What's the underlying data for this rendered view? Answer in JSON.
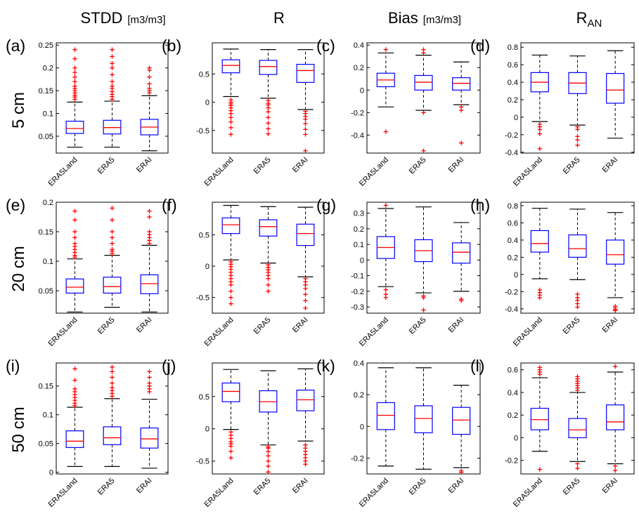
{
  "columns": [
    {
      "title": "STDD",
      "unit": "[m3/m3]"
    },
    {
      "title": "R",
      "unit": ""
    },
    {
      "title": "Bias",
      "unit": "[m3/m3]"
    },
    {
      "title": "R",
      "subscript": "AN",
      "unit": ""
    }
  ],
  "rows": [
    "5 cm",
    "20 cm",
    "50 cm"
  ],
  "colors": {
    "box": "#0000ff",
    "median": "#ff0000",
    "outlier": "#ff0000",
    "whisker": "#000000"
  },
  "chart_data": [
    {
      "label": "(a)",
      "type": "boxplot",
      "categories": [
        "ERA5Land",
        "ERA5",
        "ERAI"
      ],
      "ylim": [
        0.013,
        0.255
      ],
      "yticks": [
        0.05,
        0.1,
        0.15,
        0.2,
        0.25
      ],
      "yticklabels": [
        "0.05",
        "0.1",
        "0.15",
        "0.2",
        "0.25"
      ],
      "boxes": [
        {
          "q1": 0.056,
          "median": 0.067,
          "q3": 0.083,
          "whisker_low": 0.026,
          "whisker_high": 0.125,
          "outliers": [
            0.131,
            0.136,
            0.14,
            0.145,
            0.15,
            0.155,
            0.16,
            0.17,
            0.18,
            0.19,
            0.2,
            0.22,
            0.24
          ]
        },
        {
          "q1": 0.055,
          "median": 0.069,
          "q3": 0.085,
          "whisker_low": 0.026,
          "whisker_high": 0.127,
          "outliers": [
            0.131,
            0.137,
            0.142,
            0.148,
            0.155,
            0.16,
            0.17,
            0.185,
            0.2,
            0.21,
            0.225,
            0.24
          ]
        },
        {
          "q1": 0.053,
          "median": 0.07,
          "q3": 0.087,
          "whisker_low": 0.018,
          "whisker_high": 0.139,
          "outliers": [
            0.145,
            0.15,
            0.155,
            0.165,
            0.18,
            0.195,
            0.2
          ]
        }
      ]
    },
    {
      "label": "(b)",
      "type": "boxplot",
      "categories": [
        "ERA5Land",
        "ERA5",
        "ERAI"
      ],
      "ylim": [
        -0.9,
        1.05
      ],
      "yticks": [
        -0.5,
        0,
        0.5
      ],
      "yticklabels": [
        "-0.5",
        "0",
        "0.5"
      ],
      "boxes": [
        {
          "q1": 0.52,
          "median": 0.65,
          "q3": 0.75,
          "whisker_low": 0.1,
          "whisker_high": 0.94,
          "outliers": [
            0.04,
            0.0,
            -0.03,
            -0.06,
            -0.1,
            -0.15,
            -0.2,
            -0.27,
            -0.35,
            -0.45,
            -0.57
          ]
        },
        {
          "q1": 0.49,
          "median": 0.63,
          "q3": 0.74,
          "whisker_low": 0.07,
          "whisker_high": 0.93,
          "outliers": [
            0.03,
            -0.02,
            -0.05,
            -0.1,
            -0.17,
            -0.27,
            -0.37,
            -0.47,
            -0.56
          ]
        },
        {
          "q1": 0.35,
          "median": 0.56,
          "q3": 0.67,
          "whisker_low": -0.13,
          "whisker_high": 0.93,
          "outliers": [
            -0.16,
            -0.2,
            -0.25,
            -0.3,
            -0.38,
            -0.48,
            -0.57,
            -0.86
          ]
        }
      ]
    },
    {
      "label": "(c)",
      "type": "boxplot",
      "categories": [
        "ERA5Land",
        "ERA5",
        "ERAI"
      ],
      "ylim": [
        -0.56,
        0.42
      ],
      "yticks": [
        -0.4,
        -0.2,
        0,
        0.2,
        0.4
      ],
      "yticklabels": [
        "-0.4",
        "-0.2",
        "0",
        "0.2",
        "0.4"
      ],
      "boxes": [
        {
          "q1": 0.03,
          "median": 0.09,
          "q3": 0.15,
          "whisker_low": -0.15,
          "whisker_high": 0.33,
          "outliers": [
            0.36,
            -0.37
          ]
        },
        {
          "q1": 0.0,
          "median": 0.07,
          "q3": 0.13,
          "whisker_low": -0.18,
          "whisker_high": 0.31,
          "outliers": [
            0.33,
            0.36,
            -0.2,
            -0.54
          ]
        },
        {
          "q1": 0.0,
          "median": 0.06,
          "q3": 0.11,
          "whisker_low": -0.13,
          "whisker_high": 0.25,
          "outliers": [
            -0.15,
            -0.18,
            -0.47
          ]
        }
      ]
    },
    {
      "label": "(d)",
      "type": "boxplot",
      "categories": [
        "ERA5Land",
        "ERA5",
        "ERAI"
      ],
      "ylim": [
        -0.41,
        0.85
      ],
      "yticks": [
        -0.4,
        -0.2,
        0,
        0.2,
        0.4,
        0.6,
        0.8
      ],
      "yticklabels": [
        "-0.4",
        "-0.2",
        "0",
        "0.2",
        "0.4",
        "0.6",
        "0.8"
      ],
      "boxes": [
        {
          "q1": 0.29,
          "median": 0.4,
          "q3": 0.51,
          "whisker_low": -0.05,
          "whisker_high": 0.71,
          "outliers": [
            -0.08,
            -0.11,
            -0.14,
            -0.19,
            -0.36
          ]
        },
        {
          "q1": 0.27,
          "median": 0.39,
          "q3": 0.51,
          "whisker_low": -0.09,
          "whisker_high": 0.7,
          "outliers": [
            -0.11,
            -0.14,
            -0.22,
            -0.26,
            -0.32
          ]
        },
        {
          "q1": 0.16,
          "median": 0.31,
          "q3": 0.5,
          "whisker_low": -0.24,
          "whisker_high": 0.76,
          "outliers": []
        }
      ]
    },
    {
      "label": "(e)",
      "type": "boxplot",
      "categories": [
        "ERA5Land",
        "ERA5",
        "ERAI"
      ],
      "ylim": [
        0.012,
        0.2
      ],
      "yticks": [
        0.05,
        0.1,
        0.15,
        0.2
      ],
      "yticklabels": [
        "0.05",
        "0.1",
        "0.15",
        "0.2"
      ],
      "boxes": [
        {
          "q1": 0.046,
          "median": 0.056,
          "q3": 0.07,
          "whisker_low": 0.014,
          "whisker_high": 0.104,
          "outliers": [
            0.107,
            0.11,
            0.115,
            0.12,
            0.125,
            0.13,
            0.14,
            0.15,
            0.17,
            0.185
          ]
        },
        {
          "q1": 0.046,
          "median": 0.057,
          "q3": 0.073,
          "whisker_low": 0.022,
          "whisker_high": 0.11,
          "outliers": [
            0.113,
            0.117,
            0.12,
            0.13,
            0.14,
            0.15,
            0.17,
            0.19
          ]
        },
        {
          "q1": 0.045,
          "median": 0.062,
          "q3": 0.077,
          "whisker_low": 0.014,
          "whisker_high": 0.127,
          "outliers": [
            0.13,
            0.135,
            0.14,
            0.145,
            0.15,
            0.175,
            0.185
          ]
        }
      ]
    },
    {
      "label": "(f)",
      "type": "boxplot",
      "categories": [
        "ERA5Land",
        "ERA5",
        "ERAI"
      ],
      "ylim": [
        -0.75,
        1.02
      ],
      "yticks": [
        -0.5,
        0,
        0.5
      ],
      "yticklabels": [
        "-0.5",
        "0",
        "0.5"
      ],
      "boxes": [
        {
          "q1": 0.52,
          "median": 0.66,
          "q3": 0.77,
          "whisker_low": 0.1,
          "whisker_high": 0.97,
          "outliers": [
            0.07,
            0.03,
            -0.01,
            -0.05,
            -0.1,
            -0.15,
            -0.2,
            -0.25,
            -0.3,
            -0.4,
            -0.5,
            -0.6
          ]
        },
        {
          "q1": 0.48,
          "median": 0.63,
          "q3": 0.74,
          "whisker_low": 0.05,
          "whisker_high": 0.95,
          "outliers": [
            0.02,
            -0.02,
            -0.06,
            -0.1,
            -0.15,
            -0.2,
            -0.3,
            -0.4
          ]
        },
        {
          "q1": 0.33,
          "median": 0.52,
          "q3": 0.67,
          "whisker_low": -0.17,
          "whisker_high": 0.94,
          "outliers": [
            -0.2,
            -0.25,
            -0.3,
            -0.36,
            -0.45,
            -0.55,
            -0.67
          ]
        }
      ]
    },
    {
      "label": "(g)",
      "type": "boxplot",
      "categories": [
        "ERA5Land",
        "ERA5",
        "ERAI"
      ],
      "ylim": [
        -0.34,
        0.37
      ],
      "yticks": [
        -0.3,
        -0.2,
        -0.1,
        0,
        0.1,
        0.2,
        0.3
      ],
      "yticklabels": [
        "-0.3",
        "-0.2",
        "-0.1",
        "0",
        "0.1",
        "0.2",
        "0.3"
      ],
      "boxes": [
        {
          "q1": 0.01,
          "median": 0.08,
          "q3": 0.15,
          "whisker_low": -0.17,
          "whisker_high": 0.33,
          "outliers": [
            0.35,
            -0.19,
            -0.22,
            -0.24
          ]
        },
        {
          "q1": -0.01,
          "median": 0.06,
          "q3": 0.13,
          "whisker_low": -0.21,
          "whisker_high": 0.34,
          "outliers": [
            -0.23,
            -0.24,
            -0.32
          ]
        },
        {
          "q1": -0.02,
          "median": 0.05,
          "q3": 0.11,
          "whisker_low": -0.2,
          "whisker_high": 0.24,
          "outliers": [
            -0.25,
            -0.26
          ]
        }
      ]
    },
    {
      "label": "(h)",
      "type": "boxplot",
      "categories": [
        "ERA5Land",
        "ERA5",
        "ERAI"
      ],
      "ylim": [
        -0.45,
        0.84
      ],
      "yticks": [
        -0.4,
        -0.2,
        0,
        0.2,
        0.4,
        0.6,
        0.8
      ],
      "yticklabels": [
        "-0.4",
        "-0.2",
        "0",
        "0.2",
        "0.4",
        "0.6",
        "0.8"
      ],
      "boxes": [
        {
          "q1": 0.26,
          "median": 0.36,
          "q3": 0.51,
          "whisker_low": -0.05,
          "whisker_high": 0.77,
          "outliers": [
            -0.18,
            -0.21,
            -0.24,
            -0.27
          ]
        },
        {
          "q1": 0.2,
          "median": 0.3,
          "q3": 0.46,
          "whisker_low": -0.06,
          "whisker_high": 0.76,
          "outliers": [
            -0.23,
            -0.27,
            -0.3,
            -0.34,
            -0.38
          ]
        },
        {
          "q1": 0.12,
          "median": 0.23,
          "q3": 0.4,
          "whisker_low": -0.27,
          "whisker_high": 0.72,
          "outliers": [
            -0.37,
            -0.39,
            -0.41,
            -0.42
          ]
        }
      ]
    },
    {
      "label": "(i)",
      "type": "boxplot",
      "categories": [
        "ERA5Land",
        "ERA5",
        "ERAI"
      ],
      "ylim": [
        -0.003,
        0.19
      ],
      "yticks": [
        0,
        0.05,
        0.1,
        0.15
      ],
      "yticklabels": [
        "0",
        "0.05",
        "0.1",
        "0.15"
      ],
      "boxes": [
        {
          "q1": 0.043,
          "median": 0.054,
          "q3": 0.072,
          "whisker_low": 0.01,
          "whisker_high": 0.113,
          "outliers": [
            0.116,
            0.12,
            0.125,
            0.13,
            0.135,
            0.14,
            0.145,
            0.16,
            0.18
          ]
        },
        {
          "q1": 0.048,
          "median": 0.06,
          "q3": 0.079,
          "whisker_low": 0.01,
          "whisker_high": 0.128,
          "outliers": [
            0.132,
            0.137,
            0.142,
            0.147,
            0.155,
            0.165,
            0.175,
            0.183
          ]
        },
        {
          "q1": 0.042,
          "median": 0.058,
          "q3": 0.077,
          "whisker_low": 0.007,
          "whisker_high": 0.127,
          "outliers": [
            0.14,
            0.145,
            0.15,
            0.155,
            0.165,
            0.175
          ]
        }
      ]
    },
    {
      "label": "(j)",
      "type": "boxplot",
      "categories": [
        "ERA5Land",
        "ERA5",
        "ERAI"
      ],
      "ylim": [
        -0.7,
        1.02
      ],
      "yticks": [
        -0.5,
        0,
        0.5
      ],
      "yticklabels": [
        "-0.5",
        "0",
        "0.5"
      ],
      "boxes": [
        {
          "q1": 0.42,
          "median": 0.58,
          "q3": 0.71,
          "whisker_low": -0.01,
          "whisker_high": 0.92,
          "outliers": [
            -0.05,
            -0.1,
            -0.15,
            -0.2,
            -0.23,
            -0.27,
            -0.35,
            -0.45
          ]
        },
        {
          "q1": 0.26,
          "median": 0.42,
          "q3": 0.59,
          "whisker_low": -0.25,
          "whisker_high": 0.9,
          "outliers": [
            -0.28,
            -0.3,
            -0.35,
            -0.42,
            -0.5,
            -0.58,
            -0.67
          ]
        },
        {
          "q1": 0.28,
          "median": 0.45,
          "q3": 0.6,
          "whisker_low": -0.19,
          "whisker_high": 0.93,
          "outliers": [
            -0.25,
            -0.3,
            -0.35,
            -0.4,
            -0.45,
            -0.5,
            -0.55
          ]
        }
      ]
    },
    {
      "label": "(k)",
      "type": "boxplot",
      "categories": [
        "ERA5Land",
        "ERA5",
        "ERAI"
      ],
      "ylim": [
        -0.3,
        0.4
      ],
      "yticks": [
        -0.2,
        0,
        0.2,
        0.4
      ],
      "yticklabels": [
        "-0.2",
        "0",
        "0.2",
        "0.4"
      ],
      "boxes": [
        {
          "q1": -0.02,
          "median": 0.07,
          "q3": 0.15,
          "whisker_low": -0.25,
          "whisker_high": 0.37,
          "outliers": []
        },
        {
          "q1": -0.04,
          "median": 0.05,
          "q3": 0.13,
          "whisker_low": -0.27,
          "whisker_high": 0.37,
          "outliers": []
        },
        {
          "q1": -0.05,
          "median": 0.04,
          "q3": 0.12,
          "whisker_low": -0.26,
          "whisker_high": 0.26,
          "outliers": [
            -0.28,
            -0.29
          ]
        }
      ]
    },
    {
      "label": "(l)",
      "type": "boxplot",
      "categories": [
        "ERA5Land",
        "ERA5",
        "ERAI"
      ],
      "ylim": [
        -0.32,
        0.66
      ],
      "yticks": [
        -0.2,
        0,
        0.2,
        0.4,
        0.6
      ],
      "yticklabels": [
        "-0.2",
        "0",
        "0.2",
        "0.4",
        "0.6"
      ],
      "boxes": [
        {
          "q1": 0.07,
          "median": 0.16,
          "q3": 0.26,
          "whisker_low": -0.12,
          "whisker_high": 0.53,
          "outliers": [
            0.56,
            0.58,
            0.6,
            0.62,
            -0.28
          ]
        },
        {
          "q1": 0.0,
          "median": 0.07,
          "q3": 0.17,
          "whisker_low": -0.21,
          "whisker_high": 0.4,
          "outliers": [
            0.42,
            0.44,
            0.46,
            0.48,
            0.5,
            0.52,
            0.54,
            -0.23,
            -0.27
          ]
        },
        {
          "q1": 0.07,
          "median": 0.14,
          "q3": 0.29,
          "whisker_low": -0.23,
          "whisker_high": 0.58,
          "outliers": [
            0.63,
            -0.25,
            -0.29
          ]
        }
      ]
    }
  ]
}
